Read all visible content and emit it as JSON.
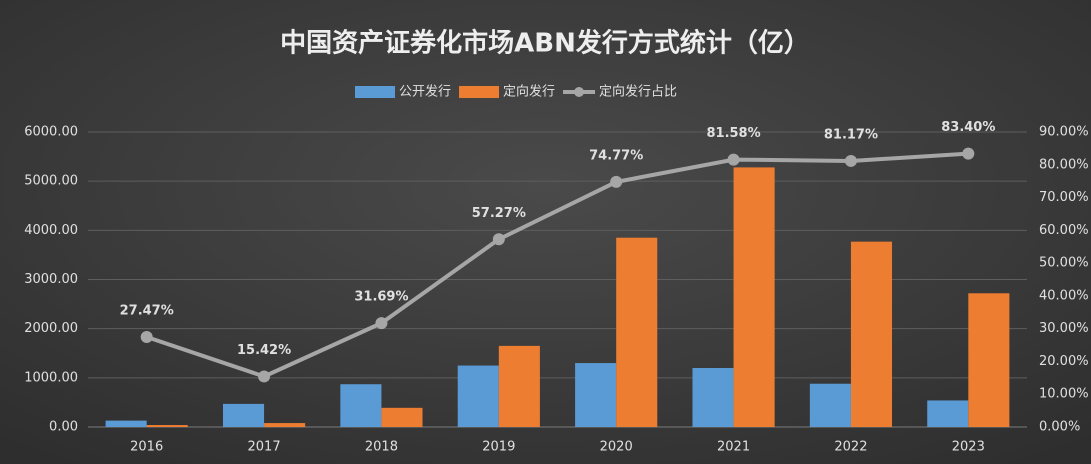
{
  "chart_data": {
    "type": "bar",
    "title": "中国资产证券化市场ABN发行方式统计（亿）",
    "categories": [
      "2016",
      "2017",
      "2018",
      "2019",
      "2020",
      "2021",
      "2022",
      "2023"
    ],
    "series": [
      {
        "name": "公开发行",
        "color": "#5b9bd5",
        "values": [
          130,
          470,
          870,
          1250,
          1300,
          1200,
          880,
          540
        ]
      },
      {
        "name": "定向发行",
        "color": "#ed7d31",
        "values": [
          40,
          80,
          390,
          1650,
          3850,
          5280,
          3770,
          2720
        ]
      },
      {
        "name": "定向发行占比",
        "type": "line",
        "axis": "y2",
        "color": "#a6a6a6",
        "values": [
          27.47,
          15.42,
          31.69,
          57.27,
          74.77,
          81.58,
          81.17,
          83.4
        ],
        "value_labels": [
          "27.47%",
          "15.42%",
          "31.69%",
          "57.27%",
          "74.77%",
          "81.58%",
          "81.17%",
          "83.40%"
        ]
      }
    ],
    "ylim": [
      0,
      6000
    ],
    "yticks": [
      {
        "value": 0,
        "label": "0.00"
      },
      {
        "value": 1000,
        "label": "1000.00"
      },
      {
        "value": 2000,
        "label": "2000.00"
      },
      {
        "value": 3000,
        "label": "3000.00"
      },
      {
        "value": 4000,
        "label": "4000.00"
      },
      {
        "value": 5000,
        "label": "5000.00"
      },
      {
        "value": 6000,
        "label": "6000.00"
      }
    ],
    "y2lim": [
      0,
      90
    ],
    "y2ticks": [
      {
        "value": 0,
        "label": "0.00%"
      },
      {
        "value": 10,
        "label": "10.00%"
      },
      {
        "value": 20,
        "label": "20.00%"
      },
      {
        "value": 30,
        "label": "30.00%"
      },
      {
        "value": 40,
        "label": "40.00%"
      },
      {
        "value": 50,
        "label": "50.00%"
      },
      {
        "value": 60,
        "label": "60.00%"
      },
      {
        "value": 70,
        "label": "70.00%"
      },
      {
        "value": 80,
        "label": "80.00%"
      },
      {
        "value": 90,
        "label": "90.00%"
      }
    ],
    "grid": true,
    "legend": "top"
  }
}
